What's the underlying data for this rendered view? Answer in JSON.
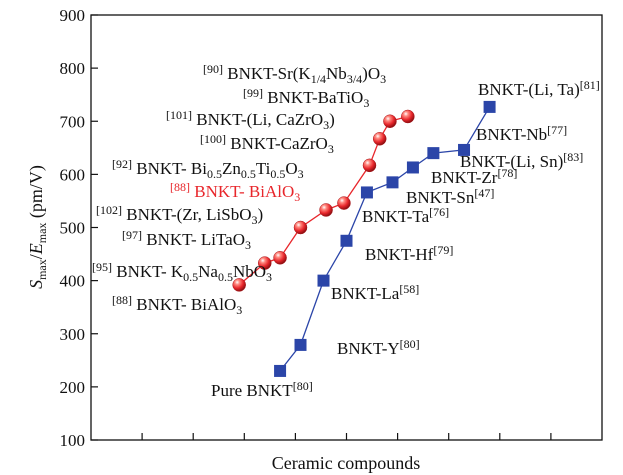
{
  "chart_data": {
    "type": "line",
    "xlabel": "Ceramic compounds",
    "ylabel": {
      "base": "S",
      "sub1": "max",
      "mid": "/",
      "italic": "E",
      "sub2": "max",
      "unit": " (pm/V)"
    },
    "ylim": [
      100,
      900
    ],
    "yticks": [
      "100",
      "200",
      "300",
      "400",
      "500",
      "600",
      "700",
      "800",
      "900"
    ],
    "xlim": [
      0,
      10
    ],
    "xticks": [
      1,
      2,
      3,
      4,
      5,
      6,
      7,
      8,
      9
    ],
    "grid": false,
    "colors": {
      "red": "#e8262b",
      "blue": "#2b45a8",
      "axis": "#111111"
    },
    "series": [
      {
        "marker": "circle",
        "color": "#e8262b",
        "points": [
          {
            "x": 2.9,
            "y": 392
          },
          {
            "x": 3.4,
            "y": 433
          },
          {
            "x": 3.7,
            "y": 443
          },
          {
            "x": 4.1,
            "y": 500
          },
          {
            "x": 4.6,
            "y": 533
          },
          {
            "x": 4.95,
            "y": 546
          },
          {
            "x": 5.45,
            "y": 617
          },
          {
            "x": 5.65,
            "y": 667
          },
          {
            "x": 5.85,
            "y": 700
          },
          {
            "x": 6.2,
            "y": 709
          }
        ]
      },
      {
        "marker": "square",
        "color": "#2b45a8",
        "points": [
          {
            "x": 3.7,
            "y": 230
          },
          {
            "x": 4.1,
            "y": 279
          },
          {
            "x": 4.55,
            "y": 400
          },
          {
            "x": 5.0,
            "y": 475
          },
          {
            "x": 5.4,
            "y": 566
          },
          {
            "x": 5.9,
            "y": 585
          },
          {
            "x": 6.3,
            "y": 613
          },
          {
            "x": 6.7,
            "y": 640
          },
          {
            "x": 7.3,
            "y": 646
          },
          {
            "x": 7.8,
            "y": 727
          }
        ]
      }
    ],
    "annotations": [
      {
        "id": "sr",
        "parts": [
          [
            "sup",
            "[90]"
          ],
          [
            "n",
            " BNKT-Sr(K"
          ],
          [
            "sub",
            "1/4"
          ],
          [
            "n",
            "Nb"
          ],
          [
            "sub",
            "3/4"
          ],
          [
            "n",
            ")O"
          ],
          [
            "sub",
            "3"
          ]
        ]
      },
      {
        "id": "batio3",
        "parts": [
          [
            "sup",
            "[99]"
          ],
          [
            "n",
            " BNKT-BaTiO"
          ],
          [
            "sub",
            "3"
          ]
        ]
      },
      {
        "id": "li-cazro3",
        "parts": [
          [
            "sup",
            "[101]"
          ],
          [
            "n",
            " BNKT-(Li, CaZrO"
          ],
          [
            "sub",
            "3"
          ],
          [
            "n",
            ")"
          ]
        ]
      },
      {
        "id": "cazro3",
        "parts": [
          [
            "sup",
            "[100]"
          ],
          [
            "n",
            " BNKT-CaZrO"
          ],
          [
            "sub",
            "3"
          ]
        ]
      },
      {
        "id": "bizn",
        "parts": [
          [
            "sup",
            "[92]"
          ],
          [
            "n",
            " BNKT- Bi"
          ],
          [
            "sub",
            "0.5"
          ],
          [
            "n",
            "Zn"
          ],
          [
            "sub",
            "0.5"
          ],
          [
            "n",
            "Ti"
          ],
          [
            "sub",
            "0.5"
          ],
          [
            "n",
            "O"
          ],
          [
            "sub",
            "3"
          ]
        ]
      },
      {
        "id": "bialo3-red",
        "red": true,
        "parts": [
          [
            "sup",
            "[88]"
          ],
          [
            "n",
            " BNKT- BiAlO"
          ],
          [
            "sub",
            "3"
          ]
        ]
      },
      {
        "id": "zr-lisbo3",
        "parts": [
          [
            "sup",
            "[102]"
          ],
          [
            "n",
            " BNKT-(Zr, LiSbO"
          ],
          [
            "sub",
            "3"
          ],
          [
            "n",
            ")"
          ]
        ]
      },
      {
        "id": "litao3",
        "parts": [
          [
            "sup",
            "[97]"
          ],
          [
            "n",
            " BNKT- LiTaO"
          ],
          [
            "sub",
            "3"
          ]
        ]
      },
      {
        "id": "kna",
        "parts": [
          [
            "sup",
            "[95]"
          ],
          [
            "n",
            " BNKT- K"
          ],
          [
            "sub",
            "0.5"
          ],
          [
            "n",
            "Na"
          ],
          [
            "sub",
            "0.5"
          ],
          [
            "n",
            "NbO"
          ],
          [
            "sub",
            "3"
          ]
        ]
      },
      {
        "id": "bialo3",
        "parts": [
          [
            "sup",
            "[88]"
          ],
          [
            "n",
            " BNKT- BiAlO"
          ],
          [
            "sub",
            "3"
          ]
        ]
      },
      {
        "id": "pure",
        "parts": [
          [
            "n",
            "Pure BNKT"
          ],
          [
            "sup",
            "[80]"
          ]
        ]
      },
      {
        "id": "y",
        "parts": [
          [
            "n",
            "BNKT-Y"
          ],
          [
            "sup",
            "[80]"
          ]
        ]
      },
      {
        "id": "la",
        "parts": [
          [
            "n",
            "BNKT-La"
          ],
          [
            "sup",
            "[58]"
          ]
        ]
      },
      {
        "id": "hf",
        "parts": [
          [
            "n",
            "BNKT-Hf"
          ],
          [
            "sup",
            "[79]"
          ]
        ]
      },
      {
        "id": "ta",
        "parts": [
          [
            "n",
            "BNKT-Ta"
          ],
          [
            "sup",
            "[76]"
          ]
        ]
      },
      {
        "id": "sn",
        "parts": [
          [
            "n",
            "BNKT-Sn"
          ],
          [
            "sup",
            "[47]"
          ]
        ]
      },
      {
        "id": "zr",
        "parts": [
          [
            "n",
            "BNKT-Zr"
          ],
          [
            "sup",
            "[78]"
          ]
        ]
      },
      {
        "id": "li-sn",
        "parts": [
          [
            "n",
            "BNKT-(Li, Sn)"
          ],
          [
            "sup",
            "[83]"
          ]
        ]
      },
      {
        "id": "nb",
        "parts": [
          [
            "n",
            "BNKT-Nb"
          ],
          [
            "sup",
            "[77]"
          ]
        ]
      },
      {
        "id": "li-ta",
        "parts": [
          [
            "n",
            "BNKT-(Li, Ta)"
          ],
          [
            "sup",
            "[81]"
          ]
        ]
      }
    ]
  }
}
